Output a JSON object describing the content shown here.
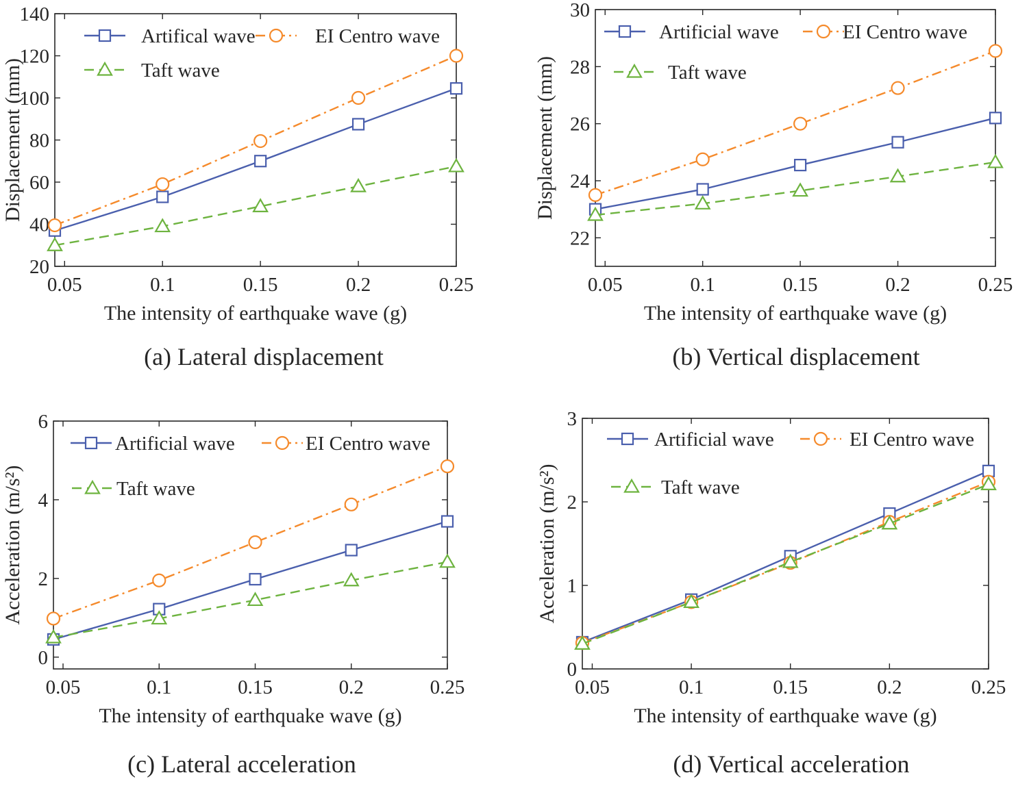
{
  "colors": {
    "axis": "#262626",
    "artificial": "#4a5fad",
    "elcentro": "#f58a2b",
    "taft": "#6db33f"
  },
  "chart_data": [
    {
      "type": "line",
      "panel": "a",
      "caption": "(a) Lateral displacement",
      "xlabel": "The intensity of earthquake wave (g)",
      "ylabel": "Displacement (mm)",
      "xlim": [
        0.045,
        0.25
      ],
      "ylim": [
        20,
        140
      ],
      "xticks": [
        0.05,
        0.1,
        0.15,
        0.2,
        0.25
      ],
      "xtick_labels": [
        "0.05",
        "0.1",
        "0.15",
        "0.2",
        "0.25"
      ],
      "yticks": [
        20,
        40,
        60,
        80,
        100,
        120,
        140
      ],
      "ytick_labels": [
        "20",
        "40",
        "60",
        "80",
        "100",
        "120",
        "140"
      ],
      "x": [
        0.045,
        0.1,
        0.15,
        0.2,
        0.25
      ],
      "series": [
        {
          "name": "Artifical wave",
          "marker": "square",
          "line": "solid",
          "color_key": "artificial",
          "values": [
            37,
            53,
            70,
            87.5,
            104.5
          ]
        },
        {
          "name": "EI Centro wave",
          "marker": "circle",
          "line": "dashdot",
          "color_key": "elcentro",
          "values": [
            39.5,
            59,
            79.5,
            100,
            120
          ]
        },
        {
          "name": "Taft  wave",
          "marker": "triangle",
          "line": "dashed",
          "color_key": "taft",
          "values": [
            30,
            39,
            48.5,
            58,
            67.5
          ]
        }
      ],
      "legend_layout": "two-row-top"
    },
    {
      "type": "line",
      "panel": "b",
      "caption": "(b) Vertical displacement",
      "xlabel": "The intensity of earthquake wave (g)",
      "ylabel": "Displacement (mm)",
      "xlim": [
        0.045,
        0.25
      ],
      "ylim": [
        21,
        30
      ],
      "xticks": [
        0.05,
        0.1,
        0.15,
        0.2,
        0.25
      ],
      "xtick_labels": [
        "0.05",
        "0.1",
        "0.15",
        "0.2",
        "0.25"
      ],
      "yticks": [
        22,
        24,
        26,
        28,
        30
      ],
      "ytick_labels": [
        "22",
        "24",
        "26",
        "28",
        "30"
      ],
      "x": [
        0.045,
        0.1,
        0.15,
        0.2,
        0.25
      ],
      "series": [
        {
          "name": "Artificial wave",
          "marker": "square",
          "line": "solid",
          "color_key": "artificial",
          "values": [
            23,
            23.7,
            24.55,
            25.35,
            26.2
          ]
        },
        {
          "name": "EI Centro wave",
          "marker": "circle",
          "line": "dashdot",
          "color_key": "elcentro",
          "values": [
            23.5,
            24.75,
            26,
            27.25,
            28.55
          ]
        },
        {
          "name": "Taft wave",
          "marker": "triangle",
          "line": "dashed",
          "color_key": "taft",
          "values": [
            22.8,
            23.2,
            23.65,
            24.15,
            24.65
          ]
        }
      ],
      "legend_layout": "two-row-top"
    },
    {
      "type": "line",
      "panel": "c",
      "caption": "(c) Lateral acceleration",
      "xlabel": "The intensity of earthquake wave (g)",
      "ylabel": "Acceleration (m/s²)",
      "xlim": [
        0.045,
        0.25
      ],
      "ylim": [
        -0.3,
        6
      ],
      "xticks": [
        0.05,
        0.1,
        0.15,
        0.2,
        0.25
      ],
      "xtick_labels": [
        "0.05",
        "0.1",
        "0.15",
        "0.2",
        "0.25"
      ],
      "yticks": [
        0,
        2,
        4,
        6
      ],
      "ytick_labels": [
        "0",
        "2",
        "4",
        "6"
      ],
      "x": [
        0.045,
        0.1,
        0.15,
        0.2,
        0.25
      ],
      "series": [
        {
          "name": "Artificial wave",
          "marker": "square",
          "line": "solid",
          "color_key": "artificial",
          "values": [
            0.45,
            1.22,
            1.98,
            2.72,
            3.45
          ]
        },
        {
          "name": "EI Centro wave",
          "marker": "circle",
          "line": "dashdot",
          "color_key": "elcentro",
          "values": [
            0.98,
            1.95,
            2.92,
            3.88,
            4.85
          ]
        },
        {
          "name": "Taft wave",
          "marker": "triangle",
          "line": "dashed",
          "color_key": "taft",
          "values": [
            0.5,
            0.98,
            1.45,
            1.95,
            2.42
          ]
        }
      ],
      "legend_layout": "two-row-top"
    },
    {
      "type": "line",
      "panel": "d",
      "caption": "(d) Vertical acceleration",
      "xlabel": "The intensity of earthquake wave (g)",
      "ylabel": "Acceleration (m/s²)",
      "xlim": [
        0.045,
        0.25
      ],
      "ylim": [
        0,
        3
      ],
      "xticks": [
        0.05,
        0.1,
        0.15,
        0.2,
        0.25
      ],
      "xtick_labels": [
        "0.05",
        "0.1",
        "0.15",
        "0.2",
        "0.25"
      ],
      "yticks": [
        0,
        1,
        2,
        3
      ],
      "ytick_labels": [
        "0",
        "1",
        "2",
        "3"
      ],
      "x": [
        0.045,
        0.1,
        0.15,
        0.2,
        0.25
      ],
      "series": [
        {
          "name": "Artificial wave",
          "marker": "square",
          "line": "solid",
          "color_key": "artificial",
          "values": [
            0.32,
            0.83,
            1.35,
            1.86,
            2.37
          ]
        },
        {
          "name": "EI Centro wave",
          "marker": "circle",
          "line": "dashdot",
          "color_key": "elcentro",
          "values": [
            0.31,
            0.8,
            1.27,
            1.76,
            2.24
          ]
        },
        {
          "name": "Taft wave",
          "marker": "triangle",
          "line": "dashed",
          "color_key": "taft",
          "values": [
            0.3,
            0.8,
            1.28,
            1.74,
            2.21
          ]
        }
      ],
      "legend_layout": "two-row-top"
    }
  ]
}
